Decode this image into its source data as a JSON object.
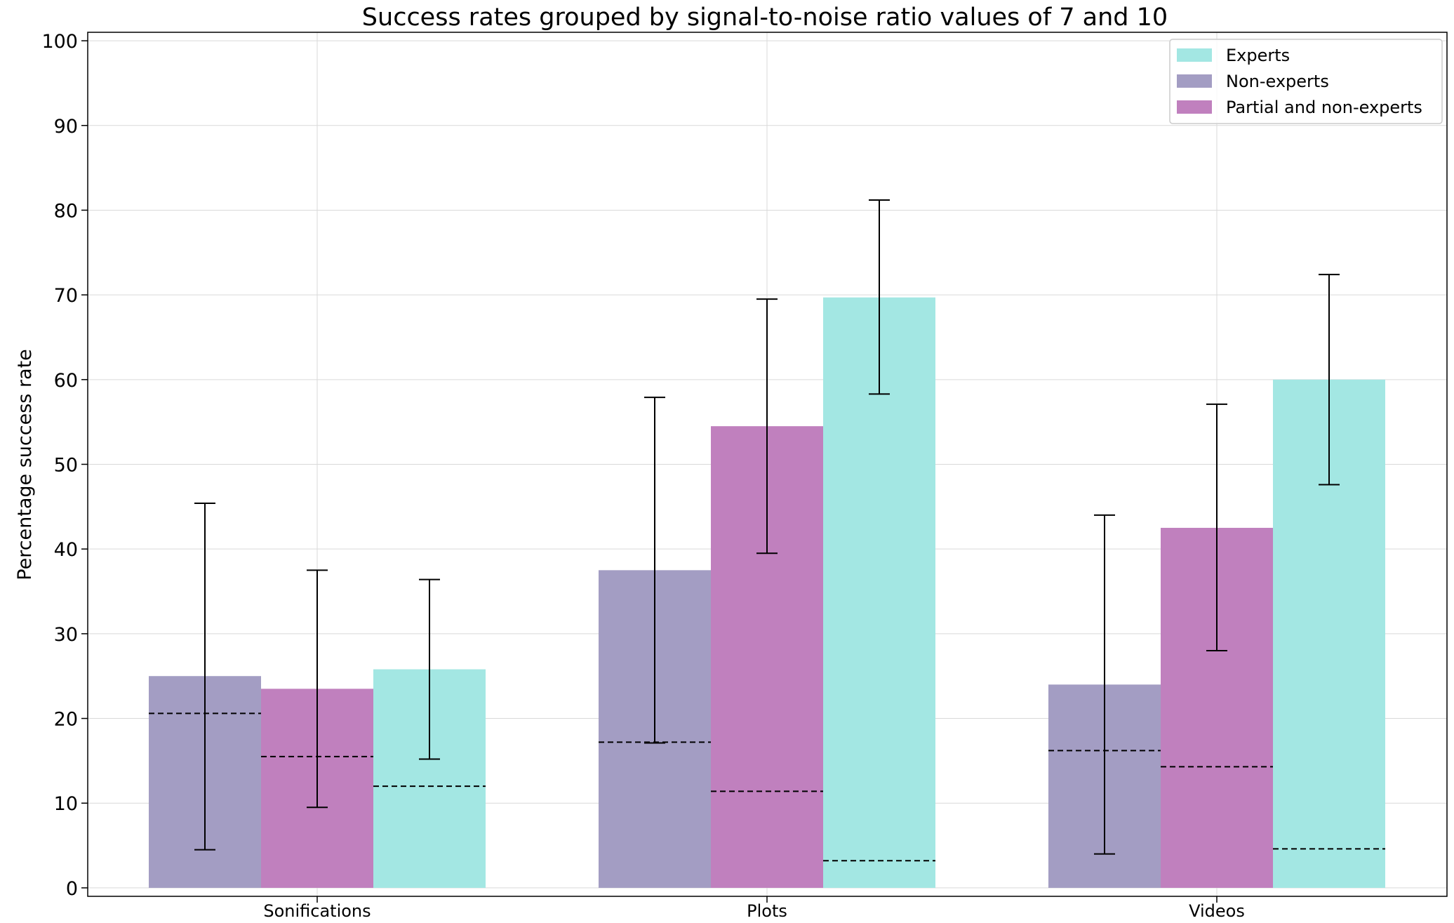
{
  "chart_data": {
    "type": "bar",
    "title": "Success rates grouped by signal-to-noise ratio values of 7 and 10",
    "xlabel": "",
    "ylabel": "Percentage success rate",
    "categories": [
      "Sonifications",
      "Plots",
      "Videos"
    ],
    "ylim": [
      -1,
      101
    ],
    "yticks": [
      0,
      10,
      20,
      30,
      40,
      50,
      60,
      70,
      80,
      90,
      100
    ],
    "grid": true,
    "legend_position": "top-right",
    "series": [
      {
        "name": "Non-experts",
        "color": "#a39dc3",
        "values": [
          25.0,
          37.5,
          24.0
        ],
        "err_low": [
          4.5,
          17.1,
          4.0
        ],
        "err_high": [
          45.4,
          57.9,
          44.0
        ],
        "chance": [
          20.6,
          17.2,
          16.2
        ]
      },
      {
        "name": "Partial and non-experts",
        "color": "#c080be",
        "values": [
          23.5,
          54.5,
          42.5
        ],
        "err_low": [
          9.5,
          39.5,
          28.0
        ],
        "err_high": [
          37.5,
          69.5,
          57.1
        ],
        "chance": [
          15.5,
          11.4,
          14.3
        ]
      },
      {
        "name": "Experts",
        "color": "#a3e7e3",
        "values": [
          25.8,
          69.7,
          60.0
        ],
        "err_low": [
          15.2,
          58.3,
          47.6
        ],
        "err_high": [
          36.4,
          81.2,
          72.4
        ],
        "chance": [
          12.0,
          3.2,
          4.6
        ]
      }
    ],
    "legend_order": [
      "Experts",
      "Non-experts",
      "Partial and non-experts"
    ]
  }
}
